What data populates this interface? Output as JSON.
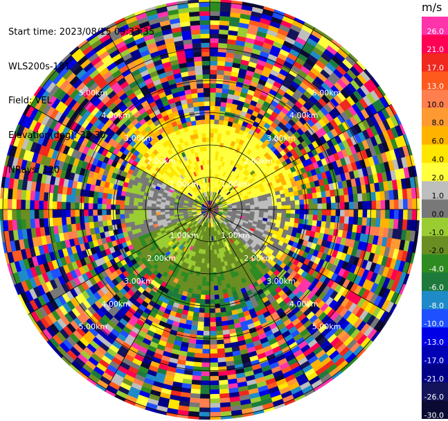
{
  "header": {
    "start_time": "Start time: 2023/08/15 09:33:35",
    "instrument": "WLS200s-181",
    "field": "Field: VEL",
    "elevation": "Elevation(deg): 35.30",
    "nrays": "NRays: 120"
  },
  "range_ring_labels": [
    "1.00km",
    "2.00km",
    "3.00km",
    "4.00km",
    "5.00km"
  ],
  "colorbar": {
    "unit": "m/s",
    "levels": [
      {
        "label": "26.0",
        "color": "#ff33aa"
      },
      {
        "label": "21.0",
        "color": "#ff0055"
      },
      {
        "label": "17.0",
        "color": "#f0281e"
      },
      {
        "label": "13.0",
        "color": "#ff5a1e"
      },
      {
        "label": "10.0",
        "color": "#ff7f4f"
      },
      {
        "label": "8.0",
        "color": "#ff9a32"
      },
      {
        "label": "6.0",
        "color": "#ffb300"
      },
      {
        "label": "4.0",
        "color": "#ffe600"
      },
      {
        "label": "2.0",
        "color": "#ffff3c"
      },
      {
        "label": "1.0",
        "color": "#bebebe"
      },
      {
        "label": "0.0",
        "color": "#787878"
      },
      {
        "label": "-1.0",
        "color": "#9acd32"
      },
      {
        "label": "-2.0",
        "color": "#6b8e23"
      },
      {
        "label": "-4.0",
        "color": "#2e8b22"
      },
      {
        "label": "-6.0",
        "color": "#1e7a3c"
      },
      {
        "label": "-8.0",
        "color": "#1e8bc8"
      },
      {
        "label": "-10.0",
        "color": "#1e50ff"
      },
      {
        "label": "-13.0",
        "color": "#0000e6"
      },
      {
        "label": "-17.0",
        "color": "#0000b4"
      },
      {
        "label": "-21.0",
        "color": "#000087"
      },
      {
        "label": "-26.0",
        "color": "#14145a"
      },
      {
        "label": "-30.0",
        "color": "#0a0a32"
      }
    ]
  }
}
